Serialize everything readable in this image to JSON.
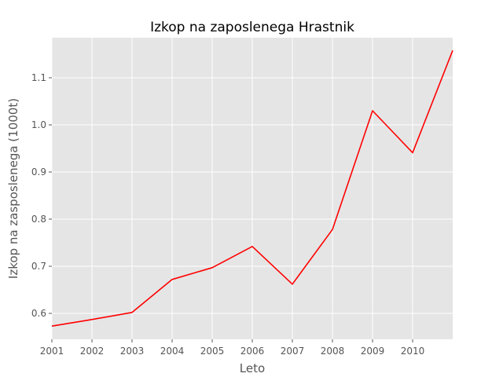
{
  "chart_data": {
    "type": "line",
    "title": "Izkop na zaposlenega Hrastnik",
    "xlabel": "Leto",
    "ylabel": "Izkop na zasposlenega (1000t)",
    "xlim": [
      2001,
      2011
    ],
    "ylim": [
      0.545,
      1.185
    ],
    "x_ticks": [
      "2001",
      "2002",
      "2003",
      "2004",
      "2005",
      "2006",
      "2007",
      "2008",
      "2009",
      "2010"
    ],
    "y_ticks": [
      "0.6",
      "0.7",
      "0.8",
      "0.9",
      "1.0",
      "1.1"
    ],
    "grid": true,
    "style": "ggplot",
    "series": [
      {
        "color": "#ff0000",
        "x": [
          2001,
          2002,
          2003,
          2004,
          2005,
          2006,
          2007,
          2008,
          2009,
          2010,
          2011
        ],
        "y": [
          0.573,
          0.587,
          0.602,
          0.672,
          0.697,
          0.742,
          0.662,
          0.778,
          1.03,
          0.941,
          1.158
        ]
      }
    ]
  }
}
